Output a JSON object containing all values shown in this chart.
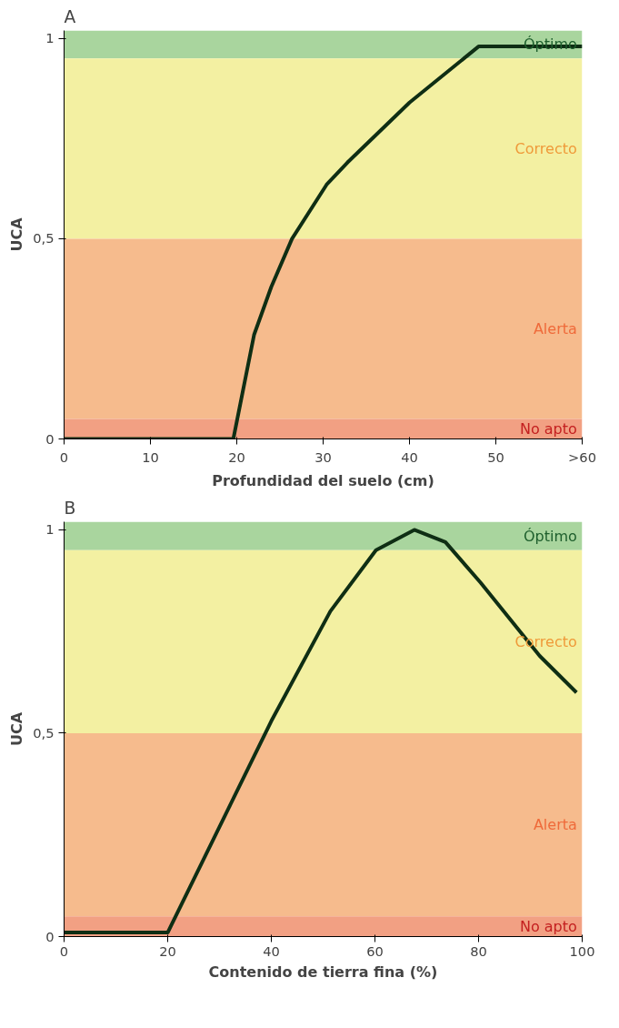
{
  "chart_data": [
    {
      "type": "line",
      "title": "A",
      "xlabel": "Profundidad del suelo (cm)",
      "ylabel": "UCA",
      "x": [
        0,
        19.6,
        22,
        24,
        26.4,
        30.4,
        32.8,
        40,
        48,
        60
      ],
      "series": [
        {
          "color": "#0f2e14",
          "values": [
            0,
            0,
            0.26,
            0.38,
            0.5,
            0.635,
            0.69,
            0.84,
            0.98,
            0.98
          ]
        }
      ],
      "xlim": [
        0,
        60
      ],
      "xticks": [
        0,
        10,
        20,
        30,
        40,
        50,
        {
          "value": 60,
          "label": ">60"
        }
      ],
      "ylim": [
        0,
        1.02
      ],
      "yticks": [
        0,
        {
          "value": 0.5,
          "label": "0,5"
        },
        1
      ],
      "bands": [
        {
          "axis": "y",
          "from": 0.95,
          "to": 1.02,
          "label": "Óptimo",
          "color": "#a9d59e"
        },
        {
          "axis": "y",
          "from": 0.5,
          "to": 0.95,
          "label": "Correcto",
          "color": "#f3f0a2"
        },
        {
          "axis": "y",
          "from": 0.05,
          "to": 0.5,
          "label": "Alerta",
          "color": "#f6bb8d"
        },
        {
          "axis": "y",
          "from": 0,
          "to": 0.05,
          "label": "No apto",
          "color": "#f2a083"
        }
      ],
      "grid": false,
      "line_style": "solid"
    },
    {
      "type": "line",
      "title": "B",
      "xlabel": "Contenido de tierra fina (%)",
      "ylabel": "UCA",
      "x": [
        0,
        20,
        40,
        51.4,
        60.2,
        67.6,
        73.6,
        80.4,
        91.8,
        98.9
      ],
      "series": [
        {
          "color": "#0f2e14",
          "values": [
            0.01,
            0.01,
            0.53,
            0.8,
            0.95,
            1.0,
            0.97,
            0.87,
            0.69,
            0.6
          ]
        }
      ],
      "xlim": [
        0,
        100
      ],
      "xticks": [
        0,
        20,
        40,
        60,
        80,
        100
      ],
      "ylim": [
        0,
        1.02
      ],
      "yticks": [
        0,
        {
          "value": 0.5,
          "label": "0,5"
        },
        1
      ],
      "bands": [
        {
          "axis": "y",
          "from": 0.95,
          "to": 1.02,
          "label": "Óptimo",
          "color": "#a9d59e"
        },
        {
          "axis": "y",
          "from": 0.5,
          "to": 0.95,
          "label": "Correcto",
          "color": "#f3f0a2"
        },
        {
          "axis": "y",
          "from": 0.05,
          "to": 0.5,
          "label": "Alerta",
          "color": "#f6bb8d"
        },
        {
          "axis": "y",
          "from": 0,
          "to": 0.05,
          "label": "No apto",
          "color": "#f2a083"
        }
      ],
      "grid": false,
      "line_style": "solid"
    }
  ]
}
